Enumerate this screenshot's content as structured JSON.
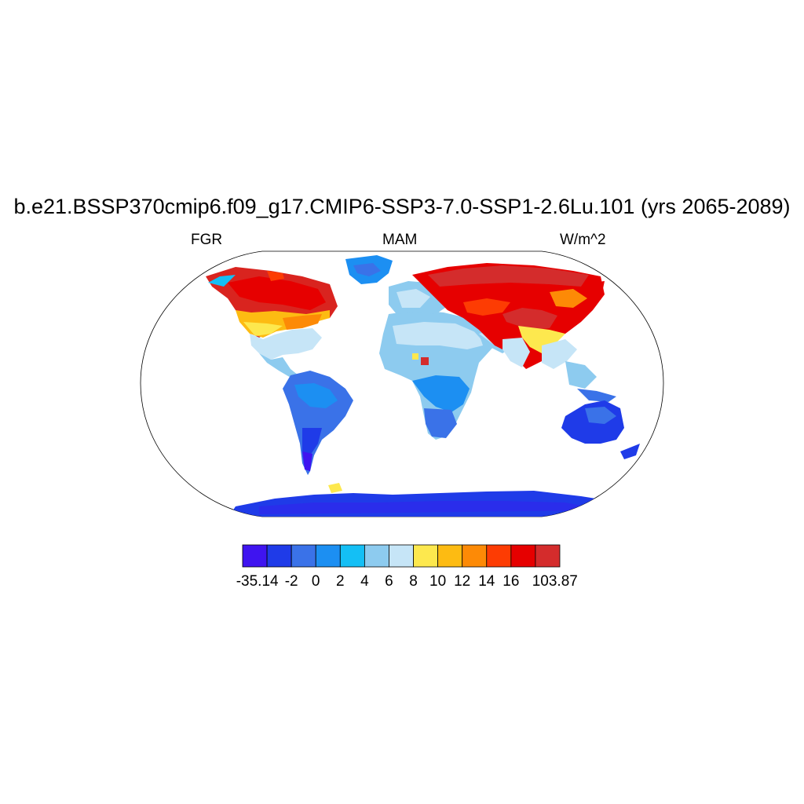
{
  "figure": {
    "title": "b.e21.BSSP370cmip6.f09_g17.CMIP6-SSP3-7.0-SSP1-2.6Lu.101 (yrs 2065-2089)",
    "left_label": "FGR",
    "center_label": "MAM",
    "right_label": "W/m^2"
  },
  "map": {
    "projection": "Robinson (global)",
    "field": "FGR",
    "season": "MAM",
    "units": "W/m^2",
    "regional_pattern": [
      {
        "region": "Canada / Alaska",
        "level": "14 to 103.87"
      },
      {
        "region": "Northern Eurasia / Siberia",
        "level": "14 to 103.87"
      },
      {
        "region": "Tibetan Plateau",
        "level": "14 to 103.87"
      },
      {
        "region": "Central United States / Mongolia",
        "level": "8 to 14"
      },
      {
        "region": "Sahara / Middle East",
        "level": "4 to 8"
      },
      {
        "region": "Southern Africa / South America",
        "level": "-2 to 2"
      },
      {
        "region": "Australia / Patagonia",
        "level": "-35.14 to -2"
      },
      {
        "region": "Antarctica",
        "level": "-35.14 to -2"
      }
    ]
  },
  "colorbar": {
    "colors": [
      "#3f14f0",
      "#1f3be8",
      "#3a72e8",
      "#1c8ff2",
      "#14bff5",
      "#8dcbef",
      "#c6e5f7",
      "#fde84e",
      "#fdbb12",
      "#fd8a06",
      "#fd3c03",
      "#e60000",
      "#d42c2c"
    ],
    "labels": [
      "-35.14",
      "-2",
      "0",
      "2",
      "4",
      "6",
      "8",
      "10",
      "12",
      "14",
      "16",
      "103.87"
    ]
  }
}
